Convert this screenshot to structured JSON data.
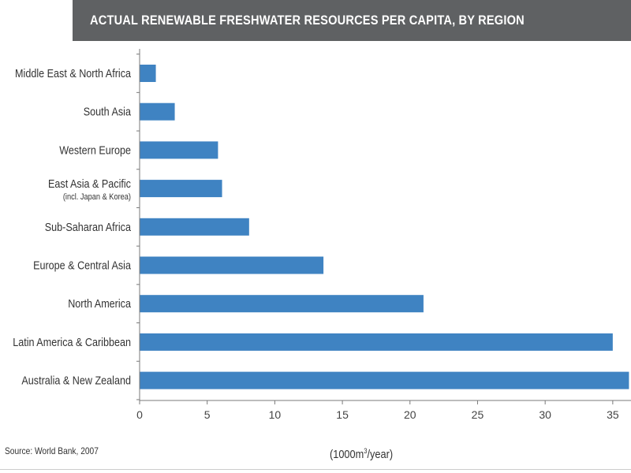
{
  "title": "ACTUAL RENEWABLE FRESHWATER RESOURCES PER CAPITA, BY REGION",
  "source": "Source: World Bank, 2007",
  "unit_prefix": "(1000m",
  "unit_sup": "3",
  "unit_suffix": "/year)",
  "colors": {
    "bar": "#3f83c2",
    "title_bar": "#5f6163",
    "axis": "#7a7a7a"
  },
  "chart_data": {
    "type": "bar",
    "orientation": "horizontal",
    "title": "ACTUAL RENEWABLE FRESHWATER RESOURCES PER CAPITA, BY REGION",
    "xlabel": "(1000m³/year)",
    "ylabel": "",
    "xlim": [
      0,
      36
    ],
    "xticks": [
      0,
      5,
      10,
      15,
      20,
      25,
      30,
      35
    ],
    "grid": false,
    "categories": [
      {
        "label": "Middle East & North Africa",
        "sub": ""
      },
      {
        "label": "South Asia",
        "sub": ""
      },
      {
        "label": "Western Europe",
        "sub": ""
      },
      {
        "label": "East Asia & Pacific",
        "sub": "(incl. Japan & Korea)"
      },
      {
        "label": "Sub-Saharan Africa",
        "sub": ""
      },
      {
        "label": "Europe & Central Asia",
        "sub": ""
      },
      {
        "label": "North America",
        "sub": ""
      },
      {
        "label": "Latin America & Caribbean",
        "sub": ""
      },
      {
        "label": "Australia & New Zealand",
        "sub": ""
      }
    ],
    "values": [
      1.2,
      2.6,
      5.8,
      6.1,
      8.1,
      13.6,
      21.0,
      35.0,
      36.2
    ]
  }
}
